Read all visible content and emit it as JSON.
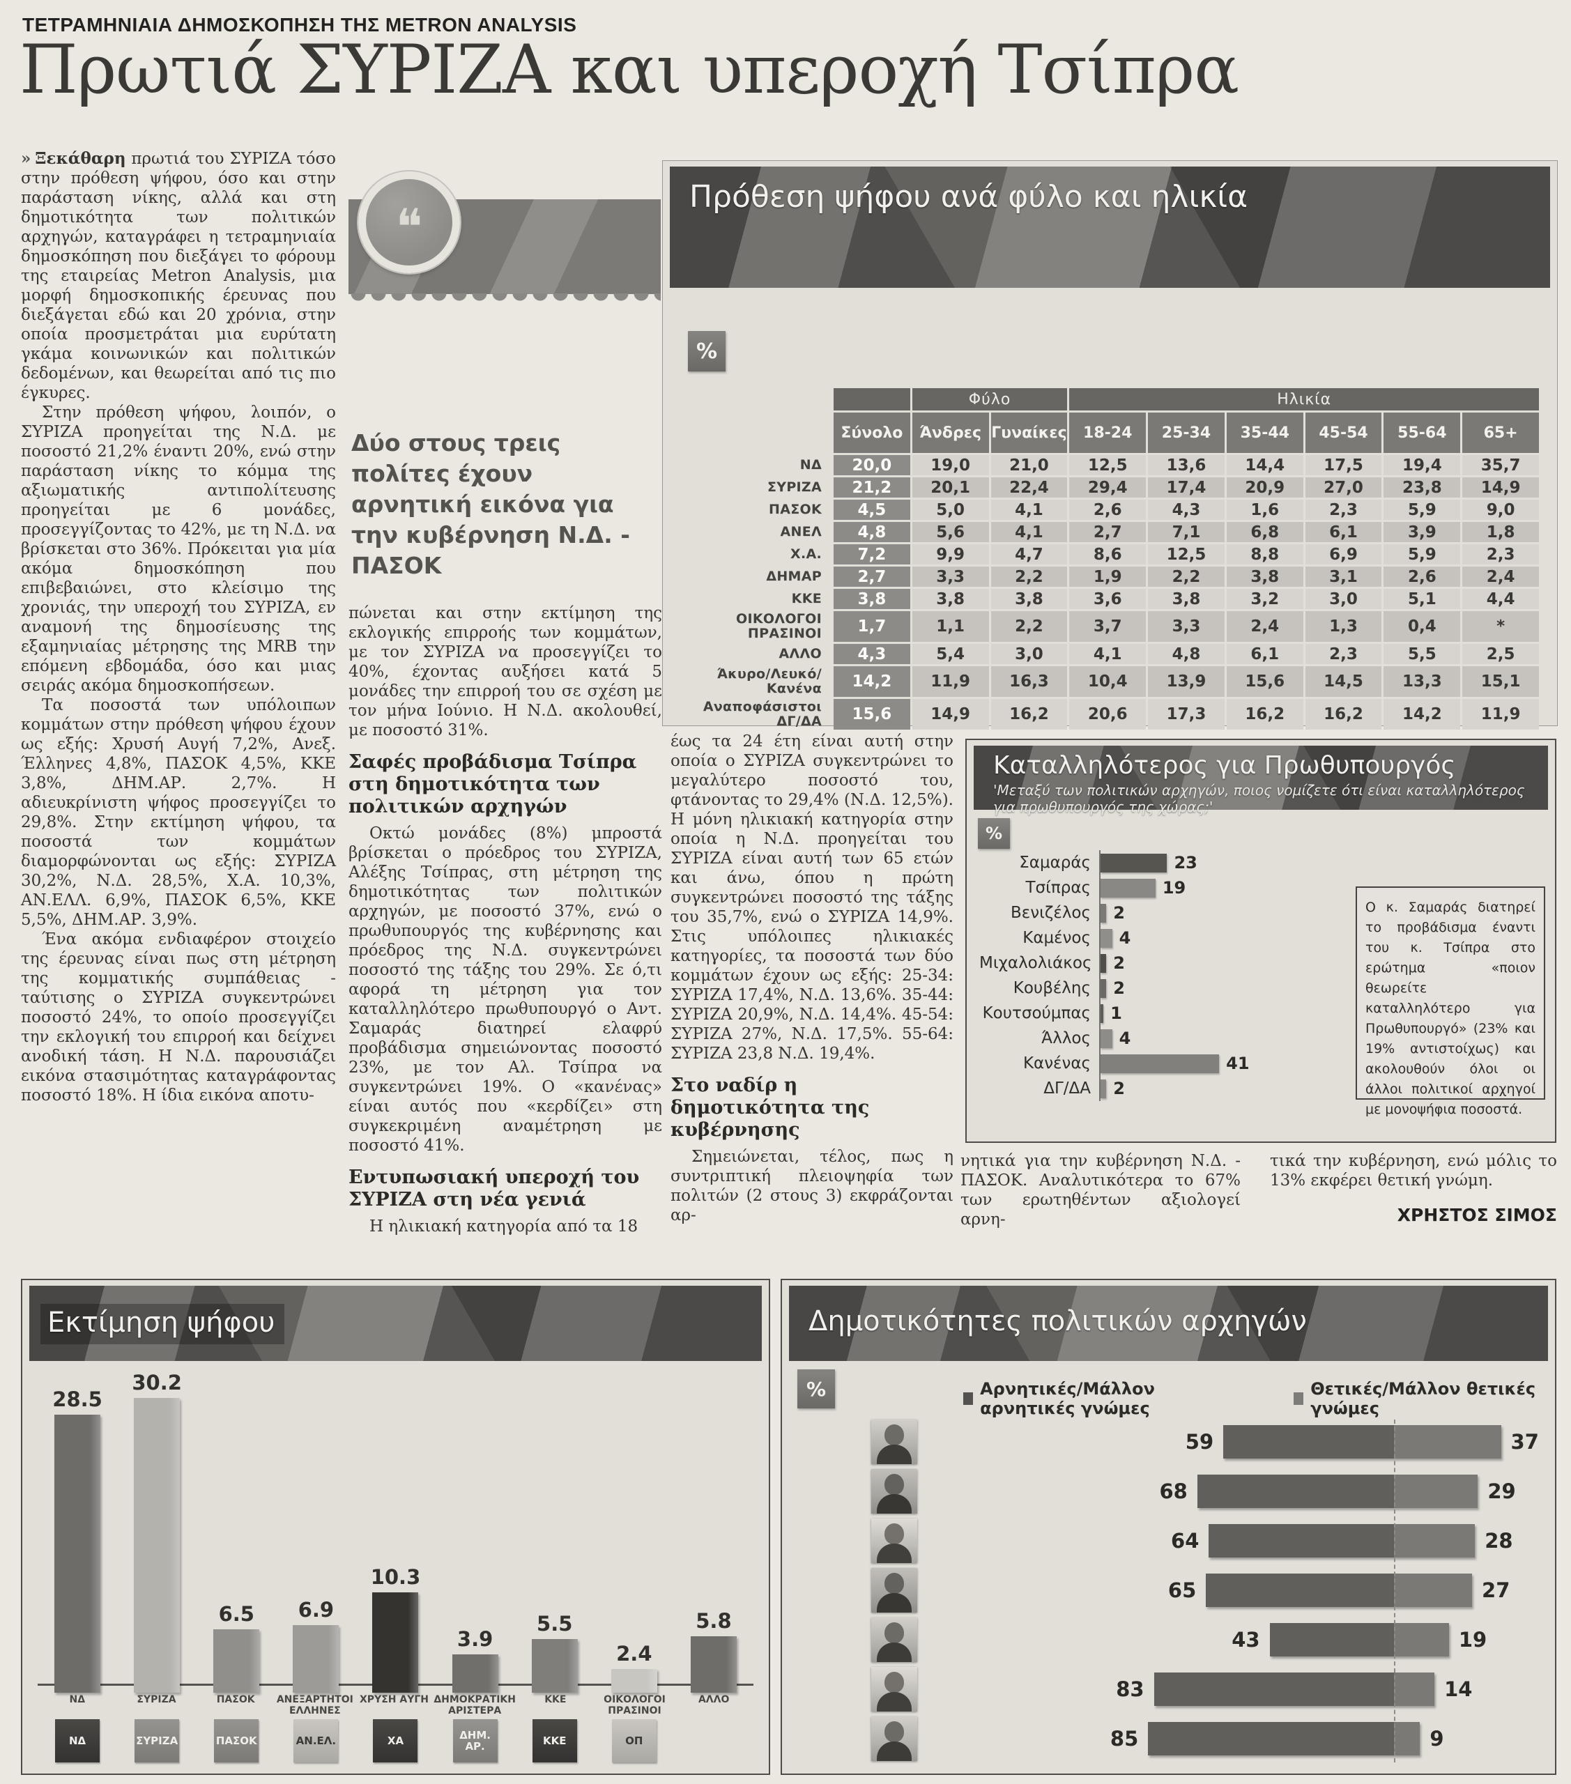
{
  "page": {
    "kicker": "ΤΕΤΡΑΜΗΝΙΑΙΑ ΔΗΜΟΣΚΟΠΗΣΗ ΤΗΣ METRON ANALYSIS",
    "headline": "Πρωτιά ΣΥΡΙΖΑ και υπεροχή Τσίπρα",
    "author": "ΧΡΗΣΤΟΣ ΣΙΜΟΣ"
  },
  "article": {
    "lead_marker": "»",
    "lead_word": "Ξεκάθαρη",
    "col1_p1_rest": " πρωτιά του ΣΥΡΙΖΑ τόσο στην πρόθεση ψήφου, όσο και στην παράσταση νίκης, αλλά και στη δημοτικότητα των πολιτικών αρχηγών, καταγράφει η τετραμηνιαία δημοσκόπηση που διεξάγει το φόρουμ της εταιρείας Metron Analysis, μια μορφή δημοσκοπικής έρευνας που διεξάγεται εδώ και 20 χρόνια, στην οποία προσμετράται μια ευρύτατη γκάμα κοινωνικών και πολιτικών δεδομένων, και θεωρείται από τις πιο έγκυρες.",
    "col1_p2": "Στην πρόθεση ψήφου, λοιπόν, ο ΣΥΡΙΖΑ προηγείται της Ν.Δ. με ποσοστό 21,2% έναντι 20%, ενώ στην παράσταση νίκης το κόμμα της αξιωματικής αντιπολίτευσης προηγείται με 6 μονάδες, προσεγγίζοντας το 42%, με τη Ν.Δ. να βρίσκεται στο 36%. Πρόκειται για μία ακόμα δημοσκόπηση που επιβεβαιώνει, στο κλείσιμο της χρονιάς, την υπεροχή του ΣΥΡΙΖΑ, εν αναμονή της δημοσίευσης της εξαμηνιαίας μέτρησης της MRB την επόμενη εβδομάδα, όσο και μιας σειράς ακόμα δημοσκοπήσεων.",
    "col1_p3": "Τα ποσοστά των υπόλοιπων κομμάτων στην πρόθεση ψήφου έχουν ως εξής: Χρυσή Αυγή 7,2%, Ανεξ. Έλληνες 4,8%, ΠΑΣΟΚ 4,5%, ΚΚΕ 3,8%, ΔΗΜ.ΑΡ. 2,7%. Η αδιευκρίνιστη ψήφος προσεγγίζει το 29,8%. Στην εκτίμηση ψήφου, τα ποσοστά των κομμάτων διαμορφώνονται ως εξής: ΣΥΡΙΖΑ 30,2%, Ν.Δ. 28,5%, Χ.Α. 10,3%, ΑΝ.ΕΛΛ. 6,9%, ΠΑΣΟΚ 6,5%, ΚΚΕ 5,5%, ΔΗΜ.ΑΡ. 3,9%.",
    "col1_p4": "Ένα ακόμα ενδιαφέρον στοιχείο της έρευνας είναι πως στη μέτρηση της κομματικής συμπάθειας - ταύτισης ο ΣΥΡΙΖΑ συγκεντρώνει ποσοστό 24%, το οποίο προσεγγίζει την εκλογική του επιρροή και δείχνει ανοδική τάση. Η Ν.Δ. παρουσιάζει εικόνα στασιμότητας καταγράφοντας ποσοστό 18%. Η ίδια εικόνα αποτυ-",
    "pull_quote": "Δύο στους τρεις πολίτες έχουν αρνητική εικόνα για την κυβέρνηση Ν.Δ. - ΠΑΣΟΚ",
    "col2_p1": "πώνεται και στην εκτίμηση της εκλογικής επιρροής των κομμάτων, με τον ΣΥΡΙΖΑ να προσεγγίζει το 40%, έχοντας αυξήσει κατά 5 μονάδες την επιρροή του σε σχέση με τον μήνα Ιούνιο. Η Ν.Δ. ακολουθεί, με ποσοστό 31%.",
    "subhead1": "Σαφές προβάδισμα Τσίπρα στη δημοτικότητα των πολιτικών αρχηγών",
    "col2_p2": "Οκτώ μονάδες (8%) μπροστά βρίσκεται ο πρόεδρος του ΣΥΡΙΖΑ, Αλέξης Τσίπρας, στη μέτρηση της δημοτικότητας των πολιτικών αρχηγών, με ποσοστό 37%, ενώ ο πρωθυπουργός της κυβέρνησης και πρόεδρος της Ν.Δ. συγκεντρώνει ποσοστό της τάξης του 29%. Σε ό,τι αφορά τη μέτρηση για τον καταλληλότερο πρωθυπουργό ο Αντ. Σαμαράς διατηρεί ελαφρύ προβάδισμα σημειώνοντας ποσοστό 23%, με τον Αλ. Τσίπρα να συγκεντρώνει 19%. Ο «κανένας» είναι αυτός που «κερδίζει» στη συγκεκριμένη αναμέτρηση με ποσοστό 41%.",
    "subhead2": "Εντυπωσιακή υπεροχή του ΣΥΡΙΖΑ στη νέα γενιά",
    "col2_p3": "Η ηλικιακή κατηγορία από τα 18",
    "col3_p1": "έως τα 24 έτη είναι αυτή στην οποία ο ΣΥΡΙΖΑ συγκεντρώνει το μεγαλύτερο ποσοστό του, φτάνοντας το 29,4% (Ν.Δ. 12,5%). Η μόνη ηλικιακή κατηγορία στην οποία η Ν.Δ. προηγείται του ΣΥΡΙΖΑ είναι αυτή των 65 ετών και άνω, όπου η πρώτη συγκεντρώνει ποσοστό της τάξης του 35,7%, ενώ ο ΣΥΡΙΖΑ 14,9%. Στις υπόλοιπες ηλικιακές κατηγορίες, τα ποσοστά των δύο κομμάτων έχουν ως εξής: 25-34: ΣΥΡΙΖΑ 17,4%, Ν.Δ. 13,6%. 35-44: ΣΥΡΙΖΑ 20,9%, Ν.Δ. 14,4%. 45-54: ΣΥΡΙΖΑ 27%, Ν.Δ. 17,5%. 55-64: ΣΥΡΙΖΑ 23,8 Ν.Δ. 19,4%.",
    "subhead3": "Στο ναδίρ η δημοτικότητα της κυβέρνησης",
    "col3_p2": "Σημειώνεται, τέλος, πως η συντριπτική πλειοψηφία των πολιτών (2 στους 3) εκφράζονται αρ-",
    "colB_p": "νητικά για την κυβέρνηση Ν.Δ. - ΠΑΣΟΚ. Αναλυτικότερα το 67% των ερωτηθέντων αξιολογεί αρνη-",
    "colC_p": "τικά την κυβέρνηση, ενώ μόλις το 13% εκφέρει θετική γνώμη."
  },
  "chart_data": [
    {
      "type": "table",
      "title": "Πρόθεση ψήφου ανά φύλο και ηλικία",
      "unit": "%",
      "group_headers": [
        "Φύλο",
        "Ηλικία"
      ],
      "columns": [
        "Σύνολο",
        "Άνδρες",
        "Γυναίκες",
        "18-24",
        "25-34",
        "35-44",
        "45-54",
        "55-64",
        "65+"
      ],
      "rows": [
        {
          "label": "ΝΔ",
          "values": [
            "20,0",
            "19,0",
            "21,0",
            "12,5",
            "13,6",
            "14,4",
            "17,5",
            "19,4",
            "35,7"
          ]
        },
        {
          "label": "ΣΥΡΙΖΑ",
          "values": [
            "21,2",
            "20,1",
            "22,4",
            "29,4",
            "17,4",
            "20,9",
            "27,0",
            "23,8",
            "14,9"
          ]
        },
        {
          "label": "ΠΑΣΟΚ",
          "values": [
            "4,5",
            "5,0",
            "4,1",
            "2,6",
            "4,3",
            "1,6",
            "2,3",
            "5,9",
            "9,0"
          ]
        },
        {
          "label": "ΑΝΕΛ",
          "values": [
            "4,8",
            "5,6",
            "4,1",
            "2,7",
            "7,1",
            "6,8",
            "6,1",
            "3,9",
            "1,8"
          ]
        },
        {
          "label": "Χ.Α.",
          "values": [
            "7,2",
            "9,9",
            "4,7",
            "8,6",
            "12,5",
            "8,8",
            "6,9",
            "5,9",
            "2,3"
          ]
        },
        {
          "label": "ΔΗΜΑΡ",
          "values": [
            "2,7",
            "3,3",
            "2,2",
            "1,9",
            "2,2",
            "3,8",
            "3,1",
            "2,6",
            "2,4"
          ]
        },
        {
          "label": "ΚΚΕ",
          "values": [
            "3,8",
            "3,8",
            "3,8",
            "3,6",
            "3,8",
            "3,2",
            "3,0",
            "5,1",
            "4,4"
          ]
        },
        {
          "label": "ΟΙΚΟΛΟΓΟΙ\nΠΡΑΣΙΝΟΙ",
          "values": [
            "1,7",
            "1,1",
            "2,2",
            "3,7",
            "3,3",
            "2,4",
            "1,3",
            "0,4",
            "*"
          ]
        },
        {
          "label": "ΑΛΛΟ",
          "values": [
            "4,3",
            "5,4",
            "3,0",
            "4,1",
            "4,8",
            "6,1",
            "2,3",
            "5,5",
            "2,5"
          ]
        },
        {
          "label": "Άκυρο/Λευκό/\nΚανένα",
          "values": [
            "14,2",
            "11,9",
            "16,3",
            "10,4",
            "13,9",
            "15,6",
            "14,5",
            "13,3",
            "15,1"
          ]
        },
        {
          "label": "Αναποφάσιστοι\nΔΓ/ΔΑ",
          "values": [
            "15,6",
            "14,9",
            "16,2",
            "20,6",
            "17,3",
            "16,2",
            "16,2",
            "14,2",
            "11,9"
          ]
        }
      ]
    },
    {
      "type": "bar",
      "orientation": "horizontal",
      "title": "Καταλληλότερος για Πρωθυπουργός",
      "subtitle": "'Μεταξύ των πολιτικών αρχηγών, ποιος νομίζετε ότι είναι καταλληλότερος για πρωθυπουργός της χώρας;'",
      "unit": "%",
      "categories": [
        "Σαμαράς",
        "Τσίπρας",
        "Βενιζέλος",
        "Καμένος",
        "Μιχαλολιάκος",
        "Κουβέλης",
        "Κουτσούμπας",
        "Άλλος",
        "Κανένας",
        "ΔΓ/ΔΑ"
      ],
      "values": [
        23,
        19,
        2,
        4,
        2,
        2,
        1,
        4,
        41,
        2
      ],
      "colors": [
        "#57554f",
        "#8a8884",
        "#7c7a76",
        "#908e8a",
        "#504e4a",
        "#6b6965",
        "#5f5d59",
        "#8e8c88",
        "#82807c",
        "#8a8884"
      ],
      "note": "Ο κ. Σαμαράς διατηρεί το προβάδισμα έναντι του κ. Τσίπρα στο ερώτημα «ποιον θεωρείτε καταλληλότερο για Πρωθυπουργό» (23% και 19% αντιστοίχως) και ακολουθούν όλοι οι άλλοι πολιτικοί αρχηγοί με μονοψήφια ποσοστά."
    },
    {
      "type": "bar",
      "title": "Εκτίμηση ψήφου",
      "categories": [
        "ΝΔ",
        "ΣΥΡΙΖΑ",
        "ΠΑΣΟΚ",
        "ΑΝΕΞΑΡΤΗΤΟΙ ΕΛΛΗΝΕΣ",
        "ΧΡΥΣΗ ΑΥΓΗ",
        "ΔΗΜΟΚΡΑΤΙΚΗ ΑΡΙΣΤΕΡΑ",
        "ΚΚΕ",
        "ΟΙΚΟΛΟΓΟΙ ΠΡΑΣΙΝΟΙ",
        "ΑΛΛΟ"
      ],
      "values": [
        28.5,
        30.2,
        6.5,
        6.9,
        10.3,
        3.9,
        5.5,
        2.4,
        5.8
      ],
      "value_labels": [
        "28.5",
        "30.2",
        "6.5",
        "6.9",
        "10.3",
        "3.9",
        "5.5",
        "2.4",
        "5.8"
      ],
      "colors": [
        "#6e6c69",
        "#b4b2ad",
        "#918f8c",
        "#9d9b98",
        "#353330",
        "#716f6c",
        "#807e7b",
        "#c8c6c1",
        "#6f6d6a"
      ],
      "logos": [
        {
          "id": "nd-logo",
          "text": "ΝΔ",
          "style": "dark"
        },
        {
          "id": "syriza-logo",
          "text": "ΣΥΡΙΖΑ",
          "style": ""
        },
        {
          "id": "pasok-logo",
          "text": "ΠΑΣΟΚ",
          "style": ""
        },
        {
          "id": "anel-logo",
          "text": "ΑΝ.ΕΛ.",
          "style": "light"
        },
        {
          "id": "xrysi-avgi-logo",
          "text": "ΧΑ",
          "style": "dark"
        },
        {
          "id": "dimar-logo",
          "text": "ΔΗΜ. ΑΡ.",
          "style": ""
        },
        {
          "id": "kke-logo",
          "text": "ΚΚΕ",
          "style": "dark"
        },
        {
          "id": "oikologoi-logo",
          "text": "ΟΠ",
          "style": "light"
        },
        {
          "id": "",
          "text": "",
          "style": "none"
        }
      ]
    },
    {
      "type": "bar",
      "paired": true,
      "title": "Δημοτικότητες πολιτικών αρχηγών",
      "unit": "%",
      "legend": [
        "Αρνητικές/Μάλλον αρνητικές γνώμες",
        "Θετικές/Μάλλον θετικές γνώμες"
      ],
      "series": [
        {
          "name": "Αρνητικές/Μάλλον αρνητικές γνώμες",
          "values": [
            59,
            68,
            64,
            65,
            43,
            83,
            85
          ]
        },
        {
          "name": "Θετικές/Μάλλον θετικές γνώμες",
          "values": [
            37,
            29,
            28,
            27,
            19,
            14,
            9
          ]
        }
      ]
    }
  ]
}
